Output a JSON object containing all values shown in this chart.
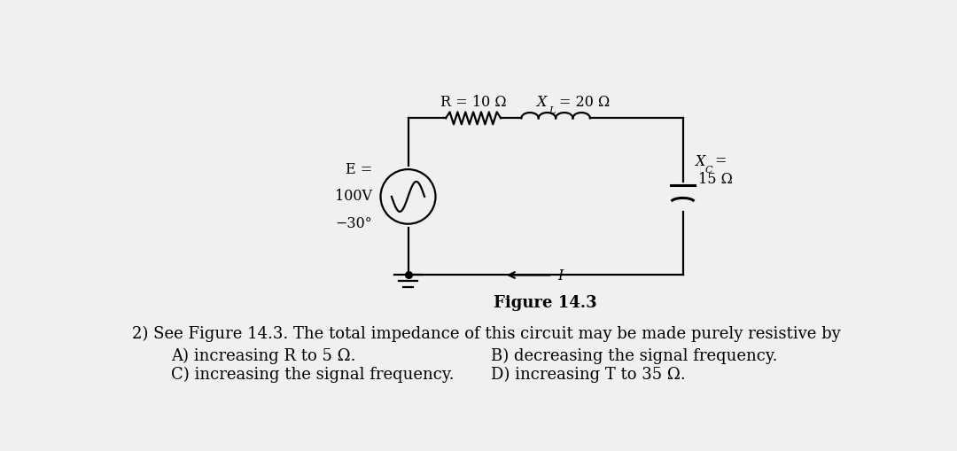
{
  "bg_color": "#f0f0f0",
  "fig_caption": "Figure 14.3",
  "question_text": "2) See Figure 14.3. The total impedance of this circuit may be made purely resistive by",
  "answer_A": "A) increasing R to 5 Ω.",
  "answer_B": "B) decreasing the signal frequency.",
  "answer_C": "C) increasing the signal frequency.",
  "answer_D": "D) increasing T to 35 Ω.",
  "label_R": "R = 10 Ω",
  "label_XL": "X",
  "label_XL_sub": "L",
  "label_XL_val": "= 20 Ω",
  "label_XC": "X",
  "label_XC_sub": "C",
  "label_XC_val": "=\n15 Ω",
  "label_I": "I",
  "circuit_color": "#000000",
  "text_color": "#000000",
  "font_size_main": 13,
  "font_size_caption": 13,
  "font_size_labels": 11.5
}
